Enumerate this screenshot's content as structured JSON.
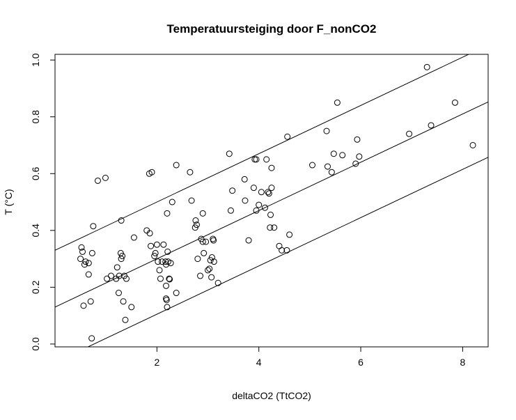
{
  "chart_data": {
    "type": "scatter",
    "title": "Temperatuursteiging door F_nonCO2",
    "xlabel": "deltaCO2 (TtCO2)",
    "ylabel": "T (°C)",
    "xlim": [
      0.0,
      8.5
    ],
    "ylim": [
      -0.01,
      1.02
    ],
    "x_ticks": [
      2,
      4,
      6,
      8
    ],
    "y_ticks": [
      0.0,
      0.2,
      0.4,
      0.6,
      0.8,
      1.0
    ],
    "x_tick_labels": [
      "2",
      "4",
      "6",
      "8"
    ],
    "y_tick_labels": [
      "0.0",
      "0.2",
      "0.4",
      "0.6",
      "0.8",
      "1.0"
    ],
    "grid": false,
    "legend": "none",
    "points": [
      [
        0.5,
        0.3
      ],
      [
        0.52,
        0.34
      ],
      [
        0.54,
        0.325
      ],
      [
        0.56,
        0.135
      ],
      [
        0.58,
        0.28
      ],
      [
        0.6,
        0.29
      ],
      [
        0.66,
        0.245
      ],
      [
        0.66,
        0.285
      ],
      [
        0.7,
        0.15
      ],
      [
        0.72,
        0.02
      ],
      [
        0.73,
        0.32
      ],
      [
        0.75,
        0.415
      ],
      [
        0.84,
        0.575
      ],
      [
        0.99,
        0.585
      ],
      [
        1.02,
        0.23
      ],
      [
        1.1,
        0.24
      ],
      [
        1.2,
        0.23
      ],
      [
        1.22,
        0.27
      ],
      [
        1.25,
        0.18
      ],
      [
        1.26,
        0.24
      ],
      [
        1.29,
        0.32
      ],
      [
        1.3,
        0.3
      ],
      [
        1.3,
        0.435
      ],
      [
        1.32,
        0.31
      ],
      [
        1.34,
        0.15
      ],
      [
        1.36,
        0.24
      ],
      [
        1.38,
        0.085
      ],
      [
        1.4,
        0.23
      ],
      [
        1.5,
        0.13
      ],
      [
        1.55,
        0.375
      ],
      [
        1.8,
        0.4
      ],
      [
        1.85,
        0.6
      ],
      [
        1.86,
        0.39
      ],
      [
        1.88,
        0.345
      ],
      [
        1.9,
        0.605
      ],
      [
        1.95,
        0.31
      ],
      [
        1.97,
        0.32
      ],
      [
        2.0,
        0.35
      ],
      [
        2.02,
        0.29
      ],
      [
        2.05,
        0.26
      ],
      [
        2.07,
        0.23
      ],
      [
        2.1,
        0.29
      ],
      [
        2.13,
        0.35
      ],
      [
        2.17,
        0.29
      ],
      [
        2.18,
        0.28
      ],
      [
        2.18,
        0.205
      ],
      [
        2.18,
        0.16
      ],
      [
        2.19,
        0.155
      ],
      [
        2.2,
        0.13
      ],
      [
        2.2,
        0.46
      ],
      [
        2.21,
        0.325
      ],
      [
        2.22,
        0.29
      ],
      [
        2.24,
        0.23
      ],
      [
        2.25,
        0.228
      ],
      [
        2.27,
        0.285
      ],
      [
        2.3,
        0.5
      ],
      [
        2.38,
        0.63
      ],
      [
        2.38,
        0.18
      ],
      [
        2.65,
        0.605
      ],
      [
        2.68,
        0.505
      ],
      [
        2.75,
        0.41
      ],
      [
        2.76,
        0.435
      ],
      [
        2.78,
        0.42
      ],
      [
        2.8,
        0.3
      ],
      [
        2.85,
        0.24
      ],
      [
        2.87,
        0.37
      ],
      [
        2.9,
        0.36
      ],
      [
        2.9,
        0.46
      ],
      [
        2.92,
        0.32
      ],
      [
        2.96,
        0.36
      ],
      [
        3.0,
        0.26
      ],
      [
        3.03,
        0.265
      ],
      [
        3.05,
        0.295
      ],
      [
        3.07,
        0.235
      ],
      [
        3.08,
        0.305
      ],
      [
        3.1,
        0.37
      ],
      [
        3.11,
        0.365
      ],
      [
        3.12,
        0.29
      ],
      [
        3.2,
        0.215
      ],
      [
        3.42,
        0.67
      ],
      [
        3.45,
        0.47
      ],
      [
        3.48,
        0.54
      ],
      [
        3.72,
        0.58
      ],
      [
        3.73,
        0.505
      ],
      [
        3.8,
        0.365
      ],
      [
        3.9,
        0.55
      ],
      [
        3.92,
        0.65
      ],
      [
        3.95,
        0.65
      ],
      [
        3.95,
        0.47
      ],
      [
        4.0,
        0.49
      ],
      [
        4.05,
        0.535
      ],
      [
        4.12,
        0.48
      ],
      [
        4.15,
        0.65
      ],
      [
        4.18,
        0.535
      ],
      [
        4.2,
        0.53
      ],
      [
        4.22,
        0.41
      ],
      [
        4.23,
        0.455
      ],
      [
        4.25,
        0.55
      ],
      [
        4.25,
        0.62
      ],
      [
        4.3,
        0.41
      ],
      [
        4.4,
        0.345
      ],
      [
        4.45,
        0.33
      ],
      [
        4.55,
        0.33
      ],
      [
        4.56,
        0.73
      ],
      [
        4.6,
        0.385
      ],
      [
        5.05,
        0.63
      ],
      [
        5.33,
        0.75
      ],
      [
        5.35,
        0.625
      ],
      [
        5.43,
        0.605
      ],
      [
        5.47,
        0.67
      ],
      [
        5.54,
        0.85
      ],
      [
        5.64,
        0.665
      ],
      [
        5.9,
        0.635
      ],
      [
        5.93,
        0.72
      ],
      [
        5.97,
        0.66
      ],
      [
        6.95,
        0.74
      ],
      [
        7.3,
        0.975
      ],
      [
        7.38,
        0.77
      ],
      [
        7.85,
        0.85
      ],
      [
        8.2,
        0.7
      ]
    ],
    "lines": [
      {
        "intercept": 0.33,
        "slope": 0.085
      },
      {
        "intercept": 0.13,
        "slope": 0.085
      },
      {
        "intercept": -0.065,
        "slope": 0.085
      }
    ]
  }
}
